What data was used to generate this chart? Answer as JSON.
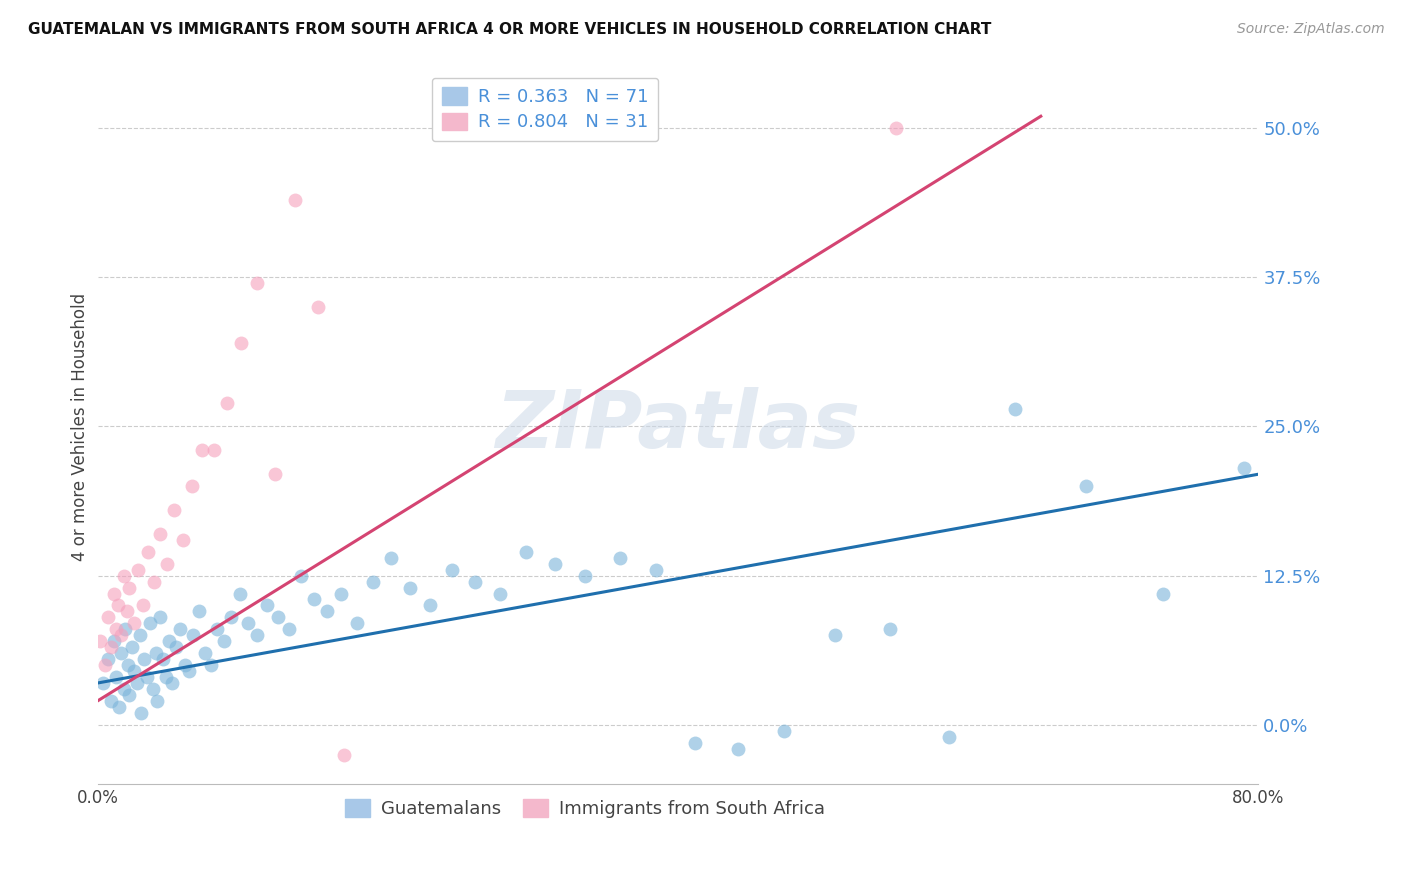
{
  "title": "GUATEMALAN VS IMMIGRANTS FROM SOUTH AFRICA 4 OR MORE VEHICLES IN HOUSEHOLD CORRELATION CHART",
  "source": "Source: ZipAtlas.com",
  "ylabel": "4 or more Vehicles in Household",
  "ytick_values": [
    0.0,
    12.5,
    25.0,
    37.5,
    50.0
  ],
  "xlim": [
    0.0,
    80.0
  ],
  "ylim": [
    -5.0,
    55.0
  ],
  "background_color": "#ffffff",
  "grid_color": "#cccccc",
  "blue_scatter_color": "#7ab3d9",
  "pink_scatter_color": "#f5a0bc",
  "trendline_blue": "#1f6fad",
  "trendline_pink": "#d44472",
  "right_axis_color": "#4a90d9",
  "legend_entries": [
    "Guatemalans",
    "Immigrants from South Africa"
  ],
  "legend_R1": "0.363",
  "legend_N1": "71",
  "legend_R2": "0.804",
  "legend_N2": "31",
  "watermark": "ZIPatlas",
  "blue_x": [
    0.4,
    0.7,
    0.9,
    1.1,
    1.3,
    1.5,
    1.6,
    1.8,
    1.9,
    2.1,
    2.2,
    2.4,
    2.5,
    2.7,
    2.9,
    3.0,
    3.2,
    3.4,
    3.6,
    3.8,
    4.0,
    4.1,
    4.3,
    4.5,
    4.7,
    4.9,
    5.1,
    5.4,
    5.7,
    6.0,
    6.3,
    6.6,
    7.0,
    7.4,
    7.8,
    8.2,
    8.7,
    9.2,
    9.8,
    10.4,
    11.0,
    11.7,
    12.4,
    13.2,
    14.0,
    14.9,
    15.8,
    16.8,
    17.9,
    19.0,
    20.2,
    21.5,
    22.9,
    24.4,
    26.0,
    27.7,
    29.5,
    31.5,
    33.6,
    36.0,
    38.5,
    41.2,
    44.1,
    47.3,
    50.8,
    54.6,
    58.7,
    63.2,
    68.1,
    73.4,
    79.0
  ],
  "blue_y": [
    3.5,
    5.5,
    2.0,
    7.0,
    4.0,
    1.5,
    6.0,
    3.0,
    8.0,
    5.0,
    2.5,
    6.5,
    4.5,
    3.5,
    7.5,
    1.0,
    5.5,
    4.0,
    8.5,
    3.0,
    6.0,
    2.0,
    9.0,
    5.5,
    4.0,
    7.0,
    3.5,
    6.5,
    8.0,
    5.0,
    4.5,
    7.5,
    9.5,
    6.0,
    5.0,
    8.0,
    7.0,
    9.0,
    11.0,
    8.5,
    7.5,
    10.0,
    9.0,
    8.0,
    12.5,
    10.5,
    9.5,
    11.0,
    8.5,
    12.0,
    14.0,
    11.5,
    10.0,
    13.0,
    12.0,
    11.0,
    14.5,
    13.5,
    12.5,
    14.0,
    13.0,
    -1.5,
    -2.0,
    -0.5,
    7.5,
    8.0,
    -1.0,
    26.5,
    20.0,
    11.0,
    21.5
  ],
  "pink_x": [
    0.2,
    0.5,
    0.7,
    0.9,
    1.1,
    1.3,
    1.4,
    1.6,
    1.8,
    2.0,
    2.2,
    2.5,
    2.8,
    3.1,
    3.5,
    3.9,
    4.3,
    4.8,
    5.3,
    5.9,
    6.5,
    7.2,
    8.0,
    8.9,
    9.9,
    11.0,
    12.2,
    13.6,
    15.2,
    17.0,
    55.0
  ],
  "pink_y": [
    7.0,
    5.0,
    9.0,
    6.5,
    11.0,
    8.0,
    10.0,
    7.5,
    12.5,
    9.5,
    11.5,
    8.5,
    13.0,
    10.0,
    14.5,
    12.0,
    16.0,
    13.5,
    18.0,
    15.5,
    20.0,
    23.0,
    23.0,
    27.0,
    32.0,
    37.0,
    21.0,
    44.0,
    35.0,
    -2.5,
    50.0
  ],
  "blue_trend_x": [
    0.0,
    80.0
  ],
  "blue_trend_y": [
    3.5,
    21.0
  ],
  "pink_trend_x": [
    0.0,
    65.0
  ],
  "pink_trend_y": [
    2.0,
    51.0
  ]
}
